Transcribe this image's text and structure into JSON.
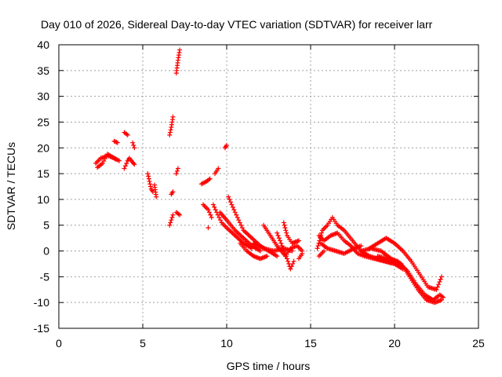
{
  "chart_data": {
    "type": "scatter",
    "title": "Day 010 of 2026, Sidereal Day-to-day VTEC variation (SDTVAR) for receiver larr",
    "xlabel": "GPS time / hours",
    "ylabel": "SDTVAR / TECUs",
    "xlim": [
      0,
      25
    ],
    "ylim": [
      -15,
      40
    ],
    "xticks": [
      0,
      5,
      10,
      15,
      20,
      25
    ],
    "yticks": [
      -15,
      -10,
      -5,
      0,
      5,
      10,
      15,
      20,
      25,
      30,
      35,
      40
    ],
    "grid": true,
    "marker": "+",
    "color": "#ff0000",
    "segments": [
      [
        [
          2.2,
          17.0
        ],
        [
          2.5,
          18.0
        ],
        [
          2.9,
          18.5
        ],
        [
          3.3,
          18.0
        ],
        [
          3.6,
          17.5
        ]
      ],
      [
        [
          2.3,
          16.2
        ],
        [
          2.6,
          17.0
        ],
        [
          2.9,
          18.8
        ],
        [
          3.4,
          17.8
        ]
      ],
      [
        [
          3.3,
          21.3
        ],
        [
          3.5,
          21.0
        ]
      ],
      [
        [
          3.9,
          23.0
        ],
        [
          4.1,
          22.5
        ]
      ],
      [
        [
          3.9,
          16.0
        ],
        [
          4.1,
          17.5
        ],
        [
          4.2,
          18.0
        ],
        [
          4.4,
          17.2
        ],
        [
          4.5,
          16.8
        ]
      ],
      [
        [
          4.4,
          21.0
        ],
        [
          4.5,
          20.0
        ]
      ],
      [
        [
          5.3,
          15.0
        ],
        [
          5.4,
          13.5
        ],
        [
          5.5,
          12.0
        ],
        [
          5.6,
          11.5
        ]
      ],
      [
        [
          5.7,
          12.8
        ],
        [
          5.8,
          10.5
        ]
      ],
      [
        [
          6.6,
          5.0
        ],
        [
          6.7,
          6.0
        ],
        [
          6.8,
          7.0
        ]
      ],
      [
        [
          6.7,
          11.0
        ],
        [
          6.8,
          11.5
        ]
      ],
      [
        [
          6.6,
          22.5
        ],
        [
          6.7,
          24.0
        ],
        [
          6.8,
          26.0
        ]
      ],
      [
        [
          7.0,
          7.5
        ],
        [
          7.2,
          7.0
        ]
      ],
      [
        [
          7.0,
          15.0
        ],
        [
          7.1,
          16.0
        ]
      ],
      [
        [
          7.0,
          34.5
        ],
        [
          7.1,
          37.0
        ],
        [
          7.2,
          39.0
        ]
      ],
      [
        [
          8.5,
          13.0
        ],
        [
          8.8,
          13.5
        ],
        [
          9.0,
          14.0
        ]
      ],
      [
        [
          8.6,
          9.0
        ],
        [
          8.9,
          8.0
        ],
        [
          9.1,
          6.5
        ]
      ],
      [
        [
          8.9,
          4.5
        ]
      ],
      [
        [
          9.3,
          15.0
        ],
        [
          9.5,
          16.0
        ]
      ],
      [
        [
          9.2,
          9.0
        ],
        [
          9.4,
          7.5
        ],
        [
          9.7,
          5.5
        ],
        [
          10.0,
          4.5
        ],
        [
          10.5,
          3.0
        ],
        [
          11.0,
          1.5
        ],
        [
          11.5,
          0.5
        ]
      ],
      [
        [
          9.6,
          7.5
        ],
        [
          10.0,
          6.0
        ],
        [
          10.5,
          4.0
        ],
        [
          11.0,
          2.5
        ],
        [
          11.5,
          1.0
        ],
        [
          12.0,
          0.0
        ]
      ],
      [
        [
          10.1,
          10.5
        ],
        [
          10.5,
          7.5
        ],
        [
          11.0,
          4.0
        ],
        [
          11.5,
          2.5
        ],
        [
          12.0,
          1.0
        ],
        [
          12.5,
          0.0
        ],
        [
          13.0,
          -1.0
        ]
      ],
      [
        [
          9.9,
          20.0
        ],
        [
          10.0,
          20.5
        ]
      ],
      [
        [
          10.8,
          1.5
        ],
        [
          11.2,
          0.0
        ],
        [
          11.6,
          -1.0
        ],
        [
          12.0,
          -1.5
        ],
        [
          12.4,
          -1.0
        ]
      ],
      [
        [
          11.6,
          1.5
        ],
        [
          12.2,
          0.5
        ],
        [
          12.8,
          0.0
        ],
        [
          13.4,
          0.5
        ],
        [
          13.9,
          0.0
        ]
      ],
      [
        [
          12.2,
          5.0
        ],
        [
          12.6,
          3.0
        ],
        [
          13.0,
          1.0
        ],
        [
          13.5,
          -1.0
        ],
        [
          13.8,
          0.5
        ],
        [
          14.2,
          1.0
        ],
        [
          14.5,
          0.0
        ]
      ],
      [
        [
          13.0,
          3.5
        ],
        [
          13.3,
          1.0
        ],
        [
          13.6,
          -1.5
        ],
        [
          13.8,
          -3.5
        ],
        [
          14.0,
          -2.0
        ]
      ],
      [
        [
          13.4,
          5.5
        ],
        [
          13.6,
          3.0
        ],
        [
          13.9,
          1.5
        ],
        [
          14.3,
          2.0
        ]
      ],
      [
        [
          14.3,
          -1.5
        ],
        [
          14.5,
          -0.5
        ]
      ],
      [
        [
          15.4,
          0.5
        ],
        [
          15.7,
          4.0
        ],
        [
          16.0,
          5.0
        ],
        [
          16.3,
          6.5
        ],
        [
          16.6,
          5.0
        ],
        [
          17.0,
          4.0
        ],
        [
          17.5,
          2.0
        ],
        [
          18.0,
          0.0
        ],
        [
          18.5,
          -1.0
        ],
        [
          19.0,
          -1.5
        ],
        [
          19.5,
          -2.0
        ],
        [
          20.0,
          -2.5
        ]
      ],
      [
        [
          15.5,
          3.0
        ],
        [
          15.8,
          2.0
        ],
        [
          16.2,
          3.0
        ],
        [
          16.6,
          3.5
        ],
        [
          17.0,
          2.0
        ],
        [
          17.4,
          1.0
        ],
        [
          17.8,
          -0.5
        ],
        [
          18.2,
          -1.0
        ],
        [
          18.8,
          -1.5
        ],
        [
          19.4,
          -2.0
        ],
        [
          20.0,
          -2.5
        ],
        [
          20.5,
          -3.5
        ]
      ],
      [
        [
          15.6,
          1.5
        ],
        [
          16.0,
          0.5
        ],
        [
          16.5,
          0.0
        ],
        [
          17.0,
          -0.5
        ],
        [
          17.6,
          0.5
        ],
        [
          18.0,
          1.0
        ]
      ],
      [
        [
          15.5,
          -1.0
        ],
        [
          15.8,
          0.0
        ]
      ],
      [
        [
          18.5,
          0.5
        ],
        [
          19.0,
          1.5
        ],
        [
          19.5,
          2.5
        ],
        [
          20.0,
          1.5
        ],
        [
          20.5,
          0.0
        ],
        [
          21.0,
          -2.0
        ],
        [
          21.5,
          -4.5
        ],
        [
          22.0,
          -7.0
        ],
        [
          22.5,
          -7.5
        ],
        [
          22.8,
          -5.0
        ]
      ],
      [
        [
          18.0,
          0.0
        ],
        [
          18.6,
          0.5
        ],
        [
          19.2,
          0.0
        ],
        [
          19.8,
          -1.5
        ],
        [
          20.4,
          -2.5
        ],
        [
          20.9,
          -5.0
        ],
        [
          21.4,
          -7.5
        ],
        [
          21.9,
          -9.5
        ],
        [
          22.4,
          -10.0
        ],
        [
          22.8,
          -9.5
        ]
      ],
      [
        [
          19.0,
          -1.0
        ],
        [
          19.6,
          -1.5
        ],
        [
          20.2,
          -2.0
        ],
        [
          20.8,
          -4.0
        ],
        [
          21.3,
          -6.5
        ],
        [
          21.8,
          -8.5
        ],
        [
          22.3,
          -9.5
        ],
        [
          22.7,
          -8.5
        ],
        [
          22.9,
          -9.0
        ]
      ]
    ]
  }
}
